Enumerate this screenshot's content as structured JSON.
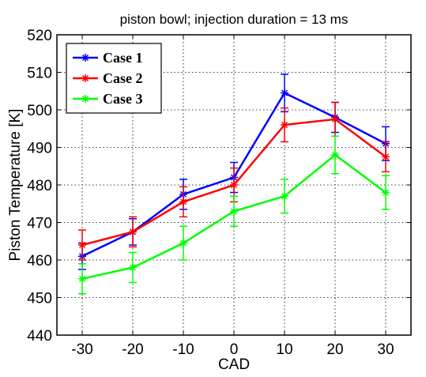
{
  "chart_data": {
    "type": "line",
    "title": "piston bowl; injection duration = 13 ms",
    "xlabel": "CAD",
    "ylabel": "Piston Temperature [K]",
    "x": [
      -30,
      -20,
      -10,
      0,
      10,
      20,
      30
    ],
    "x_tick_labels": [
      "-30",
      "-20",
      "-10",
      "0",
      "10",
      "20",
      "30"
    ],
    "y_ticks": [
      440,
      450,
      460,
      470,
      480,
      490,
      500,
      510,
      520
    ],
    "y_tick_labels": [
      "440",
      "450",
      "460",
      "470",
      "480",
      "490",
      "500",
      "510",
      "520"
    ],
    "xlim": [
      -35,
      35
    ],
    "ylim": [
      440,
      520
    ],
    "grid": true,
    "legend_position": "top-left",
    "series": [
      {
        "name": "Case 1",
        "color": "#0000ff",
        "marker": "star",
        "values": [
          461,
          467.5,
          477.5,
          482,
          504.5,
          498,
          491
        ],
        "errors": [
          3.5,
          3.5,
          4,
          4,
          5,
          4,
          4.5
        ]
      },
      {
        "name": "Case 2",
        "color": "#ff0000",
        "marker": "star",
        "values": [
          464,
          467.5,
          475.5,
          480,
          496,
          497.5,
          487.5
        ],
        "errors": [
          4,
          4,
          4,
          4.5,
          4.5,
          4.5,
          4
        ]
      },
      {
        "name": "Case 3",
        "color": "#00ff00",
        "marker": "star",
        "values": [
          455,
          458,
          464.5,
          473,
          477,
          488,
          478
        ],
        "errors": [
          4,
          4,
          4.5,
          4,
          4.5,
          5,
          4.5
        ]
      }
    ]
  }
}
